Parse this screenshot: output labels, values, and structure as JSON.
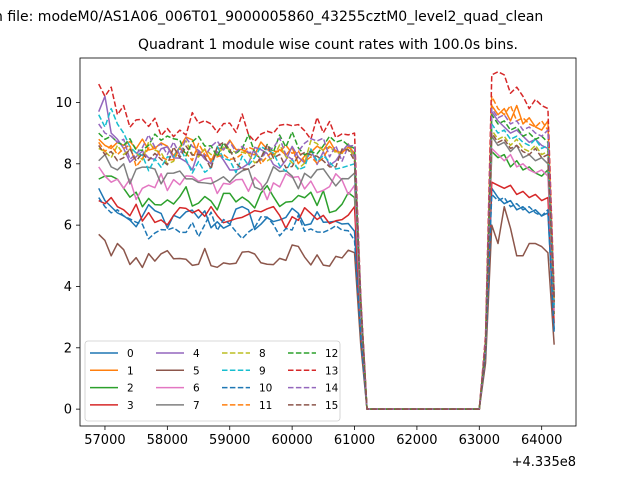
{
  "figure": {
    "suptitle": "n file: modeM0/AS1A06_006T01_9000005860_43255cztM0_level2_quad_clean",
    "title": "Quadrant 1 module wise count rates with 100.0s bins.",
    "x_offset_label": "+4.335e8"
  },
  "chart_data": {
    "type": "line",
    "title": "Quadrant 1 module wise count rates with 100.0s bins.",
    "xlabel": "",
    "ylabel": "",
    "x_offset": 433500000,
    "xlim": [
      56600,
      64550
    ],
    "ylim": [
      -0.55,
      11.45
    ],
    "xticks": [
      57000,
      58000,
      59000,
      60000,
      61000,
      62000,
      63000,
      64000
    ],
    "xtick_labels": [
      "57000",
      "58000",
      "59000",
      "60000",
      "61000",
      "62000",
      "63000",
      "64000"
    ],
    "yticks": [
      0,
      2,
      4,
      6,
      8,
      10
    ],
    "ytick_labels": [
      "0",
      "2",
      "4",
      "6",
      "8",
      "10"
    ],
    "grid": false,
    "legend_position": "lower-left",
    "legend_columns": 4,
    "segment1": {
      "x_start": 56900,
      "x_step": 100,
      "count": 43
    },
    "gap": {
      "x_start": 61200,
      "x_end": 63000,
      "value": 0
    },
    "segment2": {
      "x_start": 63000,
      "x_step": 100,
      "count": 13
    },
    "series": [
      {
        "name": "0",
        "color": "#1f77b4",
        "dash": "solid",
        "level": 6.2,
        "start": [
          7.2,
          6.8,
          6.6,
          6.4,
          6.3
        ],
        "tail": [
          5.8,
          2.5
        ],
        "seg2": [
          0.0,
          1.8,
          7.2,
          6.9,
          6.7,
          6.8,
          6.5,
          6.6,
          6.4,
          6.5,
          6.3,
          6.4,
          2.6
        ]
      },
      {
        "name": "1",
        "color": "#ff7f0e",
        "dash": "solid",
        "level": 8.5,
        "start": [
          8.8,
          8.6,
          8.5,
          8.7,
          8.6
        ],
        "tail": [
          8.3,
          3.6
        ],
        "seg2": [
          0.0,
          2.2,
          9.9,
          9.6,
          9.8,
          9.4,
          9.9,
          9.3,
          9.5,
          9.2,
          9.1,
          9.4,
          3.7
        ]
      },
      {
        "name": "2",
        "color": "#2ca02c",
        "dash": "solid",
        "level": 6.8,
        "start": [
          7.5,
          7.6,
          7.6,
          7.5,
          7.2
        ],
        "tail": [
          6.9,
          2.9
        ],
        "seg2": [
          0.0,
          1.9,
          8.4,
          8.2,
          8.3,
          7.9,
          8.1,
          7.8,
          7.9,
          7.7,
          7.6,
          7.8,
          3.1
        ]
      },
      {
        "name": "3",
        "color": "#d62728",
        "dash": "solid",
        "level": 6.3,
        "start": [
          6.8,
          6.7,
          6.9,
          6.6,
          6.5
        ],
        "tail": [
          6.6,
          2.6
        ],
        "seg2": [
          0.0,
          1.9,
          7.4,
          7.3,
          7.2,
          7.3,
          7.0,
          7.1,
          6.9,
          7.0,
          6.8,
          6.9,
          2.8
        ]
      },
      {
        "name": "4",
        "color": "#9467bd",
        "dash": "solid",
        "level": 8.2,
        "start": [
          9.7,
          10.2,
          9.0,
          8.8,
          8.5
        ],
        "tail": [
          8.2,
          3.5
        ],
        "seg2": [
          0.0,
          2.1,
          9.7,
          9.4,
          9.2,
          9.0,
          9.1,
          8.9,
          8.7,
          8.8,
          8.6,
          8.5,
          3.4
        ]
      },
      {
        "name": "5",
        "color": "#8c564b",
        "dash": "solid",
        "level": 4.9,
        "start": [
          5.7,
          5.5,
          5.0,
          5.4,
          5.2
        ],
        "tail": [
          5.1,
          2.1
        ],
        "seg2": [
          0.0,
          1.5,
          6.0,
          5.4,
          6.6,
          5.9,
          5.0,
          5.0,
          5.4,
          5.4,
          5.3,
          5.1,
          2.1
        ]
      },
      {
        "name": "6",
        "color": "#e377c2",
        "dash": "solid",
        "level": 7.3,
        "start": [
          7.9,
          7.6,
          7.4,
          7.5,
          7.2
        ],
        "tail": [
          7.3,
          3.0
        ],
        "seg2": [
          0.0,
          1.9,
          8.5,
          8.3,
          8.1,
          8.3,
          7.9,
          8.0,
          7.8,
          7.7,
          7.8,
          7.6,
          3.2
        ]
      },
      {
        "name": "7",
        "color": "#7f7f7f",
        "dash": "solid",
        "level": 7.6,
        "start": [
          8.1,
          8.3,
          7.9,
          7.8,
          8.0
        ],
        "tail": [
          7.7,
          3.2
        ],
        "seg2": [
          0.0,
          2.0,
          8.9,
          8.6,
          8.7,
          8.4,
          8.6,
          8.2,
          8.3,
          8.1,
          8.2,
          8.0,
          3.3
        ]
      },
      {
        "name": "8",
        "color": "#bcbd22",
        "dash": "dashed",
        "level": 8.3,
        "start": [
          8.5,
          8.4,
          8.2,
          8.6,
          8.3
        ],
        "tail": [
          8.2,
          3.4
        ],
        "seg2": [
          0.0,
          2.1,
          9.1,
          8.8,
          8.9,
          8.6,
          8.8,
          8.5,
          8.4,
          8.6,
          8.3,
          8.4,
          3.5
        ]
      },
      {
        "name": "9",
        "color": "#17becf",
        "dash": "dashed",
        "level": 8.1,
        "start": [
          9.6,
          9.2,
          9.8,
          9.3,
          9.0
        ],
        "tail": [
          8.0,
          3.3
        ],
        "seg2": [
          0.0,
          2.0,
          9.3,
          9.0,
          9.1,
          8.8,
          8.9,
          8.7,
          8.6,
          8.8,
          8.5,
          8.6,
          3.4
        ]
      },
      {
        "name": "10",
        "color": "#1f77b4",
        "dash": "dashed",
        "level": 6.0,
        "start": [
          6.9,
          6.6,
          6.4,
          6.5,
          6.3
        ],
        "tail": [
          5.5,
          2.4
        ],
        "seg2": [
          0.0,
          1.8,
          7.0,
          6.8,
          6.9,
          6.6,
          6.7,
          6.5,
          6.6,
          6.4,
          6.3,
          6.5,
          2.5
        ]
      },
      {
        "name": "11",
        "color": "#ff7f0e",
        "dash": "dashed",
        "level": 8.3,
        "start": [
          8.7,
          8.4,
          8.6,
          8.3,
          8.5
        ],
        "tail": [
          8.4,
          3.5
        ],
        "seg2": [
          0.0,
          2.2,
          10.2,
          9.8,
          9.6,
          9.9,
          9.4,
          9.5,
          9.3,
          9.2,
          9.4,
          9.1,
          3.6
        ]
      },
      {
        "name": "12",
        "color": "#2ca02c",
        "dash": "dashed",
        "level": 8.6,
        "start": [
          9.0,
          8.8,
          8.9,
          8.7,
          8.6
        ],
        "tail": [
          8.5,
          3.5
        ],
        "seg2": [
          0.0,
          2.1,
          9.6,
          9.3,
          9.4,
          9.1,
          9.2,
          8.9,
          9.0,
          8.8,
          8.9,
          8.7,
          3.6
        ]
      },
      {
        "name": "13",
        "color": "#d62728",
        "dash": "dashed",
        "level": 9.2,
        "start": [
          10.6,
          10.2,
          10.5,
          9.6,
          9.9
        ],
        "tail": [
          9.0,
          3.7
        ],
        "seg2": [
          0.0,
          2.4,
          10.9,
          11.0,
          10.9,
          10.3,
          10.5,
          10.2,
          9.8,
          10.1,
          9.9,
          9.8,
          3.8
        ]
      },
      {
        "name": "14",
        "color": "#9467bd",
        "dash": "dashed",
        "level": 8.5,
        "start": [
          9.3,
          9.0,
          8.9,
          8.7,
          8.8
        ],
        "tail": [
          8.6,
          3.6
        ],
        "seg2": [
          0.0,
          2.2,
          9.8,
          9.5,
          9.6,
          9.3,
          9.4,
          9.1,
          9.2,
          9.0,
          8.9,
          9.1,
          3.7
        ]
      },
      {
        "name": "15",
        "color": "#8c564b",
        "dash": "dashed",
        "level": 8.2,
        "start": [
          8.6,
          8.3,
          8.4,
          8.1,
          8.2
        ],
        "tail": [
          8.1,
          3.4
        ],
        "seg2": [
          0.0,
          2.0,
          9.0,
          8.7,
          8.8,
          8.5,
          8.6,
          8.4,
          8.3,
          8.5,
          8.2,
          8.3,
          3.5
        ]
      }
    ]
  }
}
